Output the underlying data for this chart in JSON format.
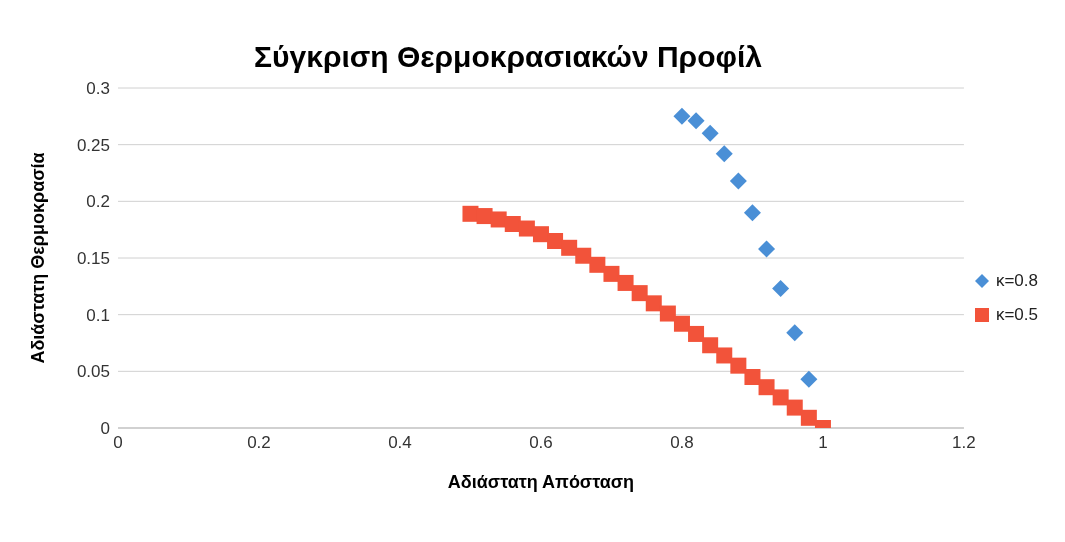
{
  "chart_data": {
    "type": "scatter",
    "title": "Σύγκριση Θερμοκρασιακών Προφίλ",
    "xlabel": "Αδιάστατη Απόσταση",
    "ylabel": "Αδιάστατη Θερμοκρασία",
    "xlim": [
      0,
      1.2
    ],
    "xticks": [
      0,
      0.2,
      0.4,
      0.6,
      0.8,
      1,
      1.2
    ],
    "ylim": [
      0,
      0.3
    ],
    "yticks": [
      0,
      0.05,
      0.1,
      0.15,
      0.2,
      0.25,
      0.3
    ],
    "grid": "y",
    "legend": "right",
    "series": [
      {
        "name": "κ=0.8",
        "color": "#4a8fd6",
        "marker": "diamond",
        "x": [
          0.8,
          0.82,
          0.84,
          0.86,
          0.88,
          0.9,
          0.92,
          0.94,
          0.96,
          0.98
        ],
        "values": [
          0.275,
          0.271,
          0.26,
          0.242,
          0.218,
          0.19,
          0.158,
          0.123,
          0.084,
          0.043
        ]
      },
      {
        "name": "κ=0.5",
        "color": "#f2533a",
        "marker": "square",
        "x": [
          0.5,
          0.52,
          0.54,
          0.56,
          0.58,
          0.6,
          0.62,
          0.64,
          0.66,
          0.68,
          0.7,
          0.72,
          0.74,
          0.76,
          0.78,
          0.8,
          0.82,
          0.84,
          0.86,
          0.88,
          0.9,
          0.92,
          0.94,
          0.96,
          0.98,
          1
        ],
        "values": [
          0.189,
          0.187,
          0.184,
          0.18,
          0.176,
          0.171,
          0.165,
          0.159,
          0.152,
          0.144,
          0.136,
          0.128,
          0.119,
          0.11,
          0.101,
          0.092,
          0.083,
          0.073,
          0.064,
          0.055,
          0.045,
          0.036,
          0.027,
          0.018,
          0.009,
          0
        ]
      }
    ]
  }
}
